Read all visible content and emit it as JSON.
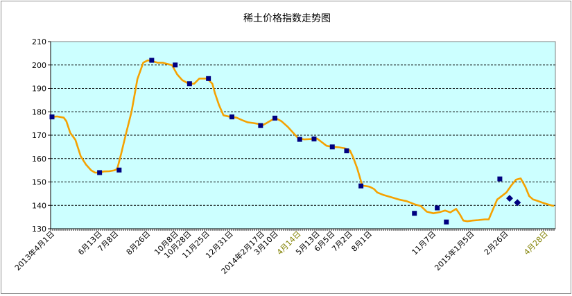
{
  "chart_data": {
    "type": "line",
    "title": "稀土价格指数走势图",
    "xlabel": "",
    "ylabel": "",
    "ylim": [
      130,
      210
    ],
    "yticks": [
      130,
      140,
      150,
      160,
      170,
      180,
      190,
      200,
      210
    ],
    "grid": "horizontal dashed",
    "colors": {
      "plot_bg": "#ccffff",
      "line": "#f5a100",
      "marker": "#000080",
      "axis": "#000000",
      "label_highlight": "#808000"
    },
    "xlabels": [
      {
        "text": "2013年4月1日",
        "x": 0,
        "highlight": false
      },
      {
        "text": "6月13日",
        "x": 73,
        "highlight": false
      },
      {
        "text": "7月8日",
        "x": 98,
        "highlight": false
      },
      {
        "text": "8月26日",
        "x": 147,
        "highlight": false
      },
      {
        "text": "10月8日",
        "x": 190,
        "highlight": false
      },
      {
        "text": "10月28日",
        "x": 210,
        "highlight": false
      },
      {
        "text": "11月25日",
        "x": 238,
        "highlight": false
      },
      {
        "text": "12月31日",
        "x": 274,
        "highlight": false
      },
      {
        "text": "2014年2月17日",
        "x": 322,
        "highlight": false
      },
      {
        "text": "3月10日",
        "x": 343,
        "highlight": false
      },
      {
        "text": "4月14日",
        "x": 378,
        "highlight": true
      },
      {
        "text": "5月13日",
        "x": 407,
        "highlight": false
      },
      {
        "text": "6月5日",
        "x": 430,
        "highlight": false
      },
      {
        "text": "7月2日",
        "x": 457,
        "highlight": false
      },
      {
        "text": "8月1日",
        "x": 487,
        "highlight": false
      },
      {
        "text": "11月7日",
        "x": 585,
        "highlight": false
      },
      {
        "text": "2015年1月5日",
        "x": 644,
        "highlight": false
      },
      {
        "text": "2月26日",
        "x": 696,
        "highlight": false
      },
      {
        "text": "4月28日",
        "x": 757,
        "highlight": true
      }
    ],
    "x_domain": [
      0,
      769
    ],
    "series": [
      {
        "values": [
          [
            0,
            177.8
          ],
          [
            8,
            178
          ],
          [
            18,
            177.5
          ],
          [
            22,
            176
          ],
          [
            28,
            171
          ],
          [
            36,
            168
          ],
          [
            44,
            161
          ],
          [
            52,
            157.5
          ],
          [
            60,
            155
          ],
          [
            66,
            154
          ],
          [
            73,
            154
          ],
          [
            80,
            154.5
          ],
          [
            88,
            154.6
          ],
          [
            96,
            155
          ],
          [
            100,
            155.5
          ],
          [
            106,
            162
          ],
          [
            113,
            170
          ],
          [
            122,
            180
          ],
          [
            131,
            194
          ],
          [
            140,
            201
          ],
          [
            147,
            202
          ],
          [
            155,
            201.5
          ],
          [
            162,
            201
          ],
          [
            170,
            201
          ],
          [
            176,
            200.5
          ],
          [
            184,
            200
          ],
          [
            192,
            196
          ],
          [
            200,
            193.5
          ],
          [
            210,
            192
          ],
          [
            218,
            192
          ],
          [
            226,
            194.2
          ],
          [
            238,
            194.2
          ],
          [
            246,
            192
          ],
          [
            250,
            188
          ],
          [
            256,
            183
          ],
          [
            263,
            178.5
          ],
          [
            274,
            177.8
          ],
          [
            283,
            177.5
          ],
          [
            291,
            176.5
          ],
          [
            300,
            175.5
          ],
          [
            309,
            175.2
          ],
          [
            317,
            174.8
          ],
          [
            322,
            174.1
          ],
          [
            328,
            175
          ],
          [
            336,
            176.3
          ],
          [
            343,
            177.3
          ],
          [
            352,
            176
          ],
          [
            362,
            173.5
          ],
          [
            370,
            171
          ],
          [
            378,
            168.6
          ],
          [
            387,
            168.2
          ],
          [
            396,
            168.3
          ],
          [
            407,
            168.5
          ],
          [
            414,
            167
          ],
          [
            421,
            165.5
          ],
          [
            430,
            165
          ],
          [
            440,
            164.8
          ],
          [
            448,
            164.5
          ],
          [
            457,
            163.5
          ],
          [
            462,
            160.5
          ],
          [
            468,
            156
          ],
          [
            476,
            148.5
          ],
          [
            487,
            148
          ],
          [
            494,
            147
          ],
          [
            499,
            145.5
          ],
          [
            508,
            144.5
          ],
          [
            520,
            143.5
          ],
          [
            532,
            142.5
          ],
          [
            544,
            141.8
          ],
          [
            556,
            140.5
          ],
          [
            566,
            139.7
          ],
          [
            575,
            137.3
          ],
          [
            585,
            136.6
          ],
          [
            595,
            137.1
          ],
          [
            603,
            137.8
          ],
          [
            611,
            137
          ],
          [
            620,
            138.5
          ],
          [
            626,
            136
          ],
          [
            631,
            133.5
          ],
          [
            637,
            133.2
          ],
          [
            645,
            133.5
          ],
          [
            654,
            133.7
          ],
          [
            664,
            134
          ],
          [
            670,
            134
          ],
          [
            676,
            138
          ],
          [
            683,
            142.5
          ],
          [
            690,
            144
          ],
          [
            697,
            145.5
          ],
          [
            704,
            148.3
          ],
          [
            712,
            151
          ],
          [
            719,
            151.5
          ],
          [
            726,
            148
          ],
          [
            732,
            144
          ],
          [
            738,
            142.5
          ],
          [
            744,
            142
          ],
          [
            752,
            141.2
          ],
          [
            760,
            140.5
          ],
          [
            766,
            140
          ],
          [
            769,
            139.8
          ]
        ],
        "markers": [
          [
            0,
            177.8
          ],
          [
            73,
            154
          ],
          [
            103,
            155.1
          ],
          [
            153,
            202
          ],
          [
            189,
            200
          ],
          [
            211,
            192
          ],
          [
            240,
            194.2
          ],
          [
            276,
            177.8
          ],
          [
            320,
            174.1
          ],
          [
            342,
            177.3
          ],
          [
            380,
            168.2
          ],
          [
            402,
            168.4
          ],
          [
            430,
            165
          ],
          [
            452,
            163.3
          ],
          [
            474,
            148.3
          ],
          [
            556,
            136.6
          ],
          [
            591,
            138.9
          ],
          [
            605,
            132.9
          ],
          [
            687,
            151.3
          ]
        ],
        "diamond_markers": [
          [
            702,
            143
          ],
          [
            714,
            141.2
          ]
        ]
      }
    ]
  }
}
